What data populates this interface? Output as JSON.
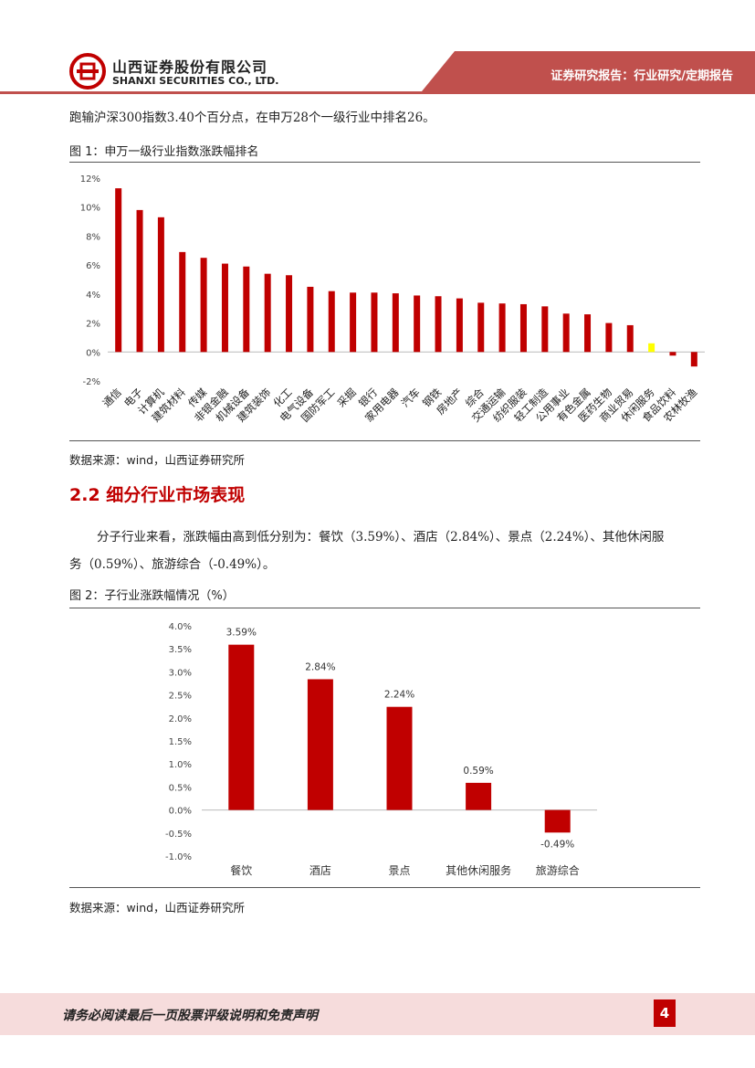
{
  "header": {
    "company_cn": "山西证券股份有限公司",
    "company_en": "SHANXI SECURITIES CO., LTD.",
    "report_tag": "证券研究报告：行业研究/定期报告"
  },
  "intro_text": "跑输沪深300指数3.40个百分点，在申万28个一级行业中排名26。",
  "figure1": {
    "title": "图 1：申万一级行业指数涨跌幅排名",
    "source": "数据来源：wind，山西证券研究所"
  },
  "section": {
    "title": "2.2 细分行业市场表现",
    "para_line1": "分子行业来看，涨跌幅由高到低分别为：餐饮（3.59%）、酒店（2.84%）、景点（2.24%）、其他休闲服",
    "para_line2": "务（0.59%）、旅游综合（-0.49%）。"
  },
  "figure2": {
    "title": "图 2：子行业涨跌幅情况（%）",
    "source": "数据来源：wind，山西证券研究所"
  },
  "footer": {
    "disclaimer": "请务必阅读最后一页股票评级说明和免责声明",
    "page_number": "4"
  },
  "colors": {
    "brand_red": "#c00000",
    "header_red": "#c0504d",
    "highlight_yellow": "#ffff00",
    "footer_bg": "#f6dcdc"
  },
  "chart_data": [
    {
      "type": "bar",
      "categories": [
        "通信",
        "电子",
        "计算机",
        "建筑材料",
        "传媒",
        "非银金融",
        "机械设备",
        "建筑装饰",
        "化工",
        "电气设备",
        "国防军工",
        "采掘",
        "银行",
        "家用电器",
        "汽车",
        "钢铁",
        "房地产",
        "综合",
        "交通运输",
        "纺织服装",
        "轻工制造",
        "公用事业",
        "有色金属",
        "医药生物",
        "商业贸易",
        "休闲服务",
        "食品饮料",
        "农林牧渔"
      ],
      "values": [
        11.3,
        9.8,
        9.3,
        6.9,
        6.5,
        6.1,
        5.9,
        5.4,
        5.3,
        4.5,
        4.2,
        4.1,
        4.1,
        4.05,
        3.9,
        3.85,
        3.7,
        3.4,
        3.35,
        3.3,
        3.15,
        2.65,
        2.6,
        2.0,
        1.85,
        0.6,
        -0.25,
        -1.0
      ],
      "highlight_category": "休闲服务",
      "yticks": [
        "12%",
        "10%",
        "8%",
        "6%",
        "4%",
        "2%",
        "0%",
        "-2%"
      ],
      "ylim": [
        -2,
        12
      ],
      "grid": false
    },
    {
      "type": "bar",
      "categories": [
        "餐饮",
        "酒店",
        "景点",
        "其他休闲服务",
        "旅游综合"
      ],
      "values": [
        3.59,
        2.84,
        2.24,
        0.59,
        -0.49
      ],
      "data_labels": [
        "3.59%",
        "2.84%",
        "2.24%",
        "0.59%",
        "-0.49%"
      ],
      "yticks": [
        "4.0%",
        "3.5%",
        "3.0%",
        "2.5%",
        "2.0%",
        "1.5%",
        "1.0%",
        "0.5%",
        "0.0%",
        "-0.5%",
        "-1.0%"
      ],
      "ylim": [
        -1.0,
        4.0
      ],
      "grid": false
    }
  ]
}
